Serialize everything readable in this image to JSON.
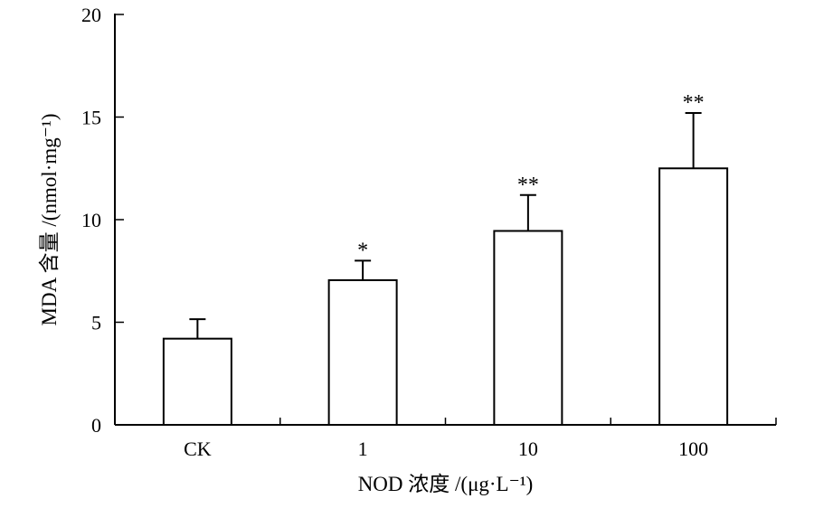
{
  "chart_data": {
    "type": "bar",
    "title": "",
    "xlabel": "NOD 浓度 /(μg·L⁻¹)",
    "ylabel": "MDA 含量 /(nmol·mg⁻¹)",
    "ylim": [
      0,
      20
    ],
    "yticks": [
      0,
      5,
      10,
      15,
      20
    ],
    "categories": [
      "CK",
      "1",
      "10",
      "100"
    ],
    "values": [
      4.2,
      7.05,
      9.45,
      12.5
    ],
    "errors": [
      0.95,
      0.95,
      1.75,
      2.7
    ],
    "significance": [
      "",
      "*",
      "**",
      "**"
    ],
    "grid": false,
    "legend": "none"
  }
}
